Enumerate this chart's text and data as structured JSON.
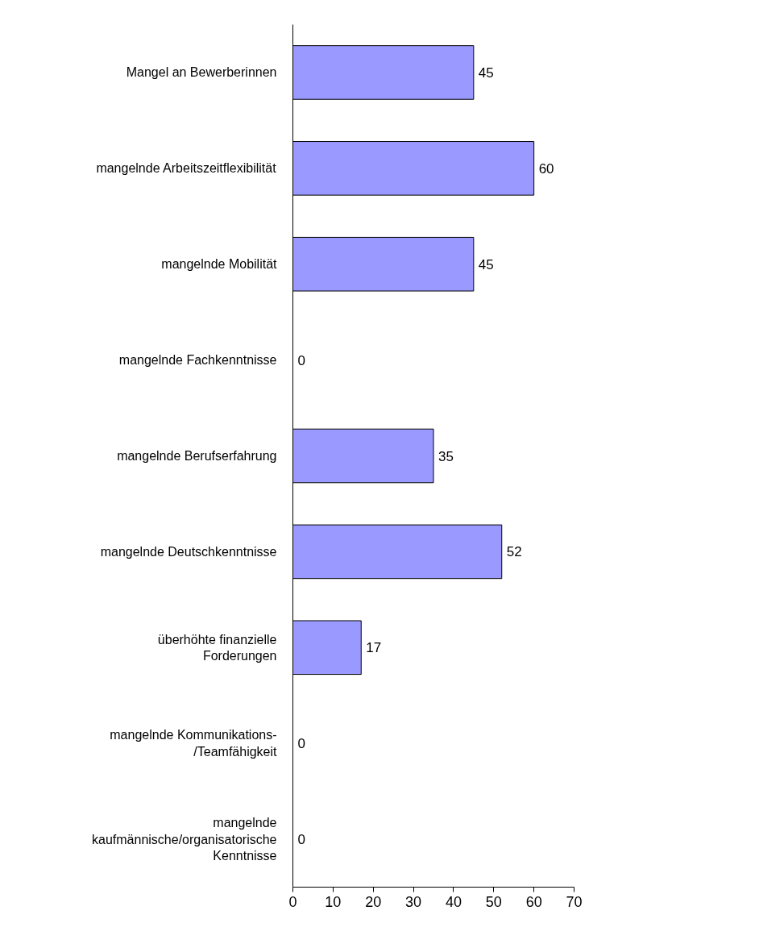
{
  "chart_data": {
    "type": "bar",
    "orientation": "horizontal",
    "categories": [
      "Mangel an Bewerberinnen",
      "mangelnde Arbeitszeitflexibilität",
      "mangelnde Mobilität",
      "mangelnde Fachkenntnisse",
      "mangelnde Berufserfahrung",
      "mangelnde Deutschkenntnisse",
      "überhöhte finanzielle\nForderungen",
      "mangelnde Kommunikations-\n/Teamfähigkeit",
      "mangelnde\nkaufmännische/organisatorische\nKenntnisse"
    ],
    "values": [
      45,
      60,
      45,
      0,
      35,
      52,
      17,
      0,
      0
    ],
    "color": "#9999ff",
    "xlim": [
      0,
      70
    ],
    "xticks": [
      0,
      10,
      20,
      30,
      40,
      50,
      60,
      70
    ],
    "data_labels": true,
    "grid": false
  }
}
